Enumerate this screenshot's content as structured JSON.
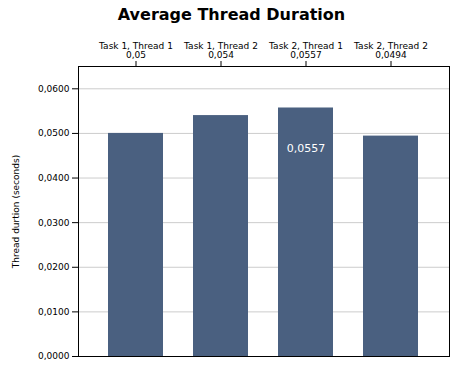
{
  "chart_data": {
    "type": "bar",
    "title": "Average Thread Duration",
    "ylabel": "Thread durtion (seconds)",
    "categories": [
      "Task 1, Thread 1",
      "Task 1, Thread 2",
      "Task 2, Thread 1",
      "Task 2, Thread 2"
    ],
    "values": [
      0.05,
      0.054,
      0.0557,
      0.0494
    ],
    "value_labels": [
      "0,05",
      "0,054",
      "0,0557",
      "0,0494"
    ],
    "color": "#4a6080",
    "ylim": [
      0,
      0.065
    ],
    "yticks": [
      {
        "value": 0.0,
        "label": "0,0000"
      },
      {
        "value": 0.01,
        "label": "0,0100"
      },
      {
        "value": 0.02,
        "label": "0,0200"
      },
      {
        "value": 0.03,
        "label": "0,0300"
      },
      {
        "value": 0.04,
        "label": "0,0400"
      },
      {
        "value": 0.05,
        "label": "0,0500"
      },
      {
        "value": 0.06,
        "label": "0,0600"
      }
    ],
    "grid": true,
    "annotations": [
      {
        "text": "0,0557",
        "x": "Task 2, Thread 1"
      }
    ]
  }
}
